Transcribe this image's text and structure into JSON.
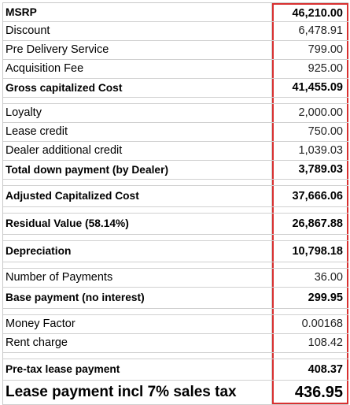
{
  "groups": [
    {
      "rows": [
        {
          "label": "MSRP",
          "value": "46,210.00",
          "bold": true
        },
        {
          "label": "Discount",
          "value": "6,478.91",
          "bold": false
        },
        {
          "label": "Pre Delivery Service",
          "value": "799.00",
          "bold": false
        },
        {
          "label": "Acquisition Fee",
          "value": "925.00",
          "bold": false
        },
        {
          "label": "Gross capitalized Cost",
          "value": "41,455.09",
          "bold": true
        }
      ]
    },
    {
      "rows": [
        {
          "label": "Loyalty",
          "value": "2,000.00",
          "bold": false
        },
        {
          "label": "Lease credit",
          "value": "750.00",
          "bold": false
        },
        {
          "label": "Dealer additional credit",
          "value": "1,039.03",
          "bold": false
        },
        {
          "label": "Total down payment (by Dealer)",
          "value": "3,789.03",
          "bold": true
        }
      ]
    },
    {
      "rows": [
        {
          "label": "Adjusted Capitalized Cost",
          "value": "37,666.06",
          "bold": true
        }
      ]
    },
    {
      "rows": [
        {
          "label": "Residual Value (58.14%)",
          "value": "26,867.88",
          "bold": true
        }
      ]
    },
    {
      "rows": [
        {
          "label": "Depreciation",
          "value": "10,798.18",
          "bold": true
        }
      ]
    },
    {
      "rows": [
        {
          "label": "Number of Payments",
          "value": "36.00",
          "bold": false
        },
        {
          "label": "Base payment (no interest)",
          "value": "299.95",
          "bold": true
        }
      ]
    },
    {
      "rows": [
        {
          "label": "Money Factor",
          "value": "0.00168",
          "bold": false
        },
        {
          "label": "Rent charge",
          "value": "108.42",
          "bold": false
        }
      ]
    },
    {
      "rows": [
        {
          "label": "Pre-tax lease payment",
          "value": "408.37",
          "bold": true
        },
        {
          "label": "Lease payment incl 7% sales tax",
          "value": "436.95",
          "bold": true
        }
      ]
    }
  ]
}
